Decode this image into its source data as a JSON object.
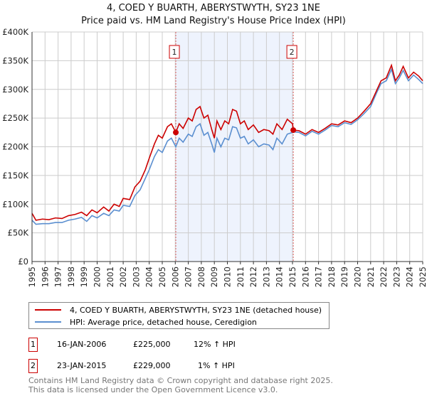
{
  "title": "4, COED Y BUARTH, ABERYSTWYTH, SY23 1NE",
  "subtitle": "Price paid vs. HM Land Registry's House Price Index (HPI)",
  "chart_data": {
    "type": "line",
    "xlim": [
      1995,
      2025
    ],
    "ylim": [
      0,
      400000
    ],
    "y_ticks": [
      0,
      50000,
      100000,
      150000,
      200000,
      250000,
      300000,
      350000,
      400000
    ],
    "y_tick_labels": [
      "£0",
      "£50K",
      "£100K",
      "£150K",
      "£200K",
      "£250K",
      "£300K",
      "£350K",
      "£400K"
    ],
    "x_tick_labels": [
      "1995",
      "1996",
      "1997",
      "1998",
      "1999",
      "2000",
      "2001",
      "2002",
      "2003",
      "2004",
      "2005",
      "2006",
      "2007",
      "2008",
      "2009",
      "2010",
      "2011",
      "2012",
      "2013",
      "2014",
      "2015",
      "2016",
      "2017",
      "2018",
      "2019",
      "2020",
      "2021",
      "2022",
      "2023",
      "2024",
      "2025"
    ],
    "grid": true,
    "shaded_region": [
      2006.04,
      2015.06
    ],
    "series": [
      {
        "name": "4, COED Y BUARTH, ABERYSTWYTH, SY23 1NE (detached house)",
        "color": "#cc0000",
        "points": [
          [
            1995,
            84
          ],
          [
            1995.3,
            72
          ],
          [
            1995.8,
            74
          ],
          [
            1996.3,
            73
          ],
          [
            1996.8,
            76
          ],
          [
            1997.3,
            75
          ],
          [
            1997.8,
            80
          ],
          [
            1998.3,
            82
          ],
          [
            1998.8,
            86
          ],
          [
            1999.2,
            80
          ],
          [
            1999.6,
            90
          ],
          [
            2000,
            85
          ],
          [
            2000.5,
            95
          ],
          [
            2000.9,
            88
          ],
          [
            2001.3,
            100
          ],
          [
            2001.7,
            96
          ],
          [
            2002,
            110
          ],
          [
            2002.5,
            108
          ],
          [
            2002.9,
            130
          ],
          [
            2003.3,
            140
          ],
          [
            2003.7,
            160
          ],
          [
            2004,
            180
          ],
          [
            2004.4,
            205
          ],
          [
            2004.7,
            220
          ],
          [
            2005,
            215
          ],
          [
            2005.4,
            235
          ],
          [
            2005.7,
            240
          ],
          [
            2006.04,
            225
          ],
          [
            2006.3,
            240
          ],
          [
            2006.6,
            232
          ],
          [
            2007,
            250
          ],
          [
            2007.3,
            245
          ],
          [
            2007.6,
            265
          ],
          [
            2007.9,
            270
          ],
          [
            2008.2,
            250
          ],
          [
            2008.5,
            255
          ],
          [
            2008.8,
            230
          ],
          [
            2009,
            215
          ],
          [
            2009.2,
            245
          ],
          [
            2009.5,
            230
          ],
          [
            2009.8,
            245
          ],
          [
            2010.1,
            240
          ],
          [
            2010.4,
            265
          ],
          [
            2010.7,
            262
          ],
          [
            2011,
            240
          ],
          [
            2011.3,
            245
          ],
          [
            2011.6,
            230
          ],
          [
            2012,
            238
          ],
          [
            2012.4,
            225
          ],
          [
            2012.8,
            230
          ],
          [
            2013.2,
            228
          ],
          [
            2013.5,
            222
          ],
          [
            2013.8,
            240
          ],
          [
            2014.2,
            230
          ],
          [
            2014.6,
            248
          ],
          [
            2015,
            240
          ],
          [
            2015.06,
            229
          ],
          [
            2015.5,
            228
          ],
          [
            2016,
            222
          ],
          [
            2016.5,
            230
          ],
          [
            2017,
            225
          ],
          [
            2017.5,
            232
          ],
          [
            2018,
            240
          ],
          [
            2018.5,
            238
          ],
          [
            2019,
            245
          ],
          [
            2019.5,
            242
          ],
          [
            2020,
            250
          ],
          [
            2020.5,
            262
          ],
          [
            2021,
            275
          ],
          [
            2021.5,
            300
          ],
          [
            2021.8,
            315
          ],
          [
            2022.2,
            320
          ],
          [
            2022.6,
            342
          ],
          [
            2022.9,
            315
          ],
          [
            2023.2,
            325
          ],
          [
            2023.5,
            340
          ],
          [
            2023.9,
            320
          ],
          [
            2024.3,
            330
          ],
          [
            2024.7,
            323
          ],
          [
            2025,
            315
          ]
        ]
      },
      {
        "name": "HPI: Average price, detached house, Ceredigion",
        "color": "#5b8fd0",
        "points": [
          [
            1995,
            72
          ],
          [
            1995.3,
            65
          ],
          [
            1995.8,
            66
          ],
          [
            1996.3,
            66
          ],
          [
            1996.8,
            68
          ],
          [
            1997.3,
            68
          ],
          [
            1997.8,
            72
          ],
          [
            1998.3,
            74
          ],
          [
            1998.8,
            77
          ],
          [
            1999.2,
            70
          ],
          [
            1999.6,
            80
          ],
          [
            2000,
            76
          ],
          [
            2000.5,
            84
          ],
          [
            2000.9,
            80
          ],
          [
            2001.3,
            90
          ],
          [
            2001.7,
            88
          ],
          [
            2002,
            98
          ],
          [
            2002.5,
            96
          ],
          [
            2002.9,
            115
          ],
          [
            2003.3,
            125
          ],
          [
            2003.7,
            145
          ],
          [
            2004,
            160
          ],
          [
            2004.4,
            183
          ],
          [
            2004.7,
            195
          ],
          [
            2005,
            190
          ],
          [
            2005.4,
            210
          ],
          [
            2005.7,
            215
          ],
          [
            2006.04,
            200
          ],
          [
            2006.3,
            215
          ],
          [
            2006.6,
            208
          ],
          [
            2007,
            222
          ],
          [
            2007.3,
            218
          ],
          [
            2007.6,
            235
          ],
          [
            2007.9,
            240
          ],
          [
            2008.2,
            220
          ],
          [
            2008.5,
            225
          ],
          [
            2008.8,
            205
          ],
          [
            2009,
            190
          ],
          [
            2009.2,
            215
          ],
          [
            2009.5,
            200
          ],
          [
            2009.8,
            215
          ],
          [
            2010.1,
            212
          ],
          [
            2010.4,
            235
          ],
          [
            2010.7,
            233
          ],
          [
            2011,
            215
          ],
          [
            2011.3,
            218
          ],
          [
            2011.6,
            205
          ],
          [
            2012,
            212
          ],
          [
            2012.4,
            200
          ],
          [
            2012.8,
            205
          ],
          [
            2013.2,
            203
          ],
          [
            2013.5,
            195
          ],
          [
            2013.8,
            215
          ],
          [
            2014.2,
            205
          ],
          [
            2014.6,
            222
          ],
          [
            2015,
            225
          ],
          [
            2015.06,
            226
          ],
          [
            2015.5,
            225
          ],
          [
            2016,
            219
          ],
          [
            2016.5,
            227
          ],
          [
            2017,
            222
          ],
          [
            2017.5,
            229
          ],
          [
            2018,
            237
          ],
          [
            2018.5,
            235
          ],
          [
            2019,
            242
          ],
          [
            2019.5,
            239
          ],
          [
            2020,
            247
          ],
          [
            2020.5,
            258
          ],
          [
            2021,
            270
          ],
          [
            2021.5,
            296
          ],
          [
            2021.8,
            310
          ],
          [
            2022.2,
            315
          ],
          [
            2022.6,
            335
          ],
          [
            2022.9,
            310
          ],
          [
            2023.2,
            320
          ],
          [
            2023.5,
            333
          ],
          [
            2023.9,
            315
          ],
          [
            2024.3,
            325
          ],
          [
            2024.7,
            317
          ],
          [
            2025,
            310
          ]
        ]
      }
    ],
    "annotations": [
      {
        "label": "1",
        "x": 2006.04,
        "y": 225
      },
      {
        "label": "2",
        "x": 2015.06,
        "y": 229
      }
    ]
  },
  "legend": {
    "red": "4, COED Y BUARTH, ABERYSTWYTH, SY23 1NE (detached house)",
    "blue": "HPI: Average price, detached house, Ceredigion"
  },
  "transactions": [
    {
      "num": "1",
      "date": "16-JAN-2006",
      "price": "£225,000",
      "hpi": "12% ↑ HPI"
    },
    {
      "num": "2",
      "date": "23-JAN-2015",
      "price": "£229,000",
      "hpi": "1% ↑ HPI"
    }
  ],
  "footer": {
    "line1": "Contains HM Land Registry data © Crown copyright and database right 2025.",
    "line2": "This data is licensed under the Open Government Licence v3.0."
  }
}
